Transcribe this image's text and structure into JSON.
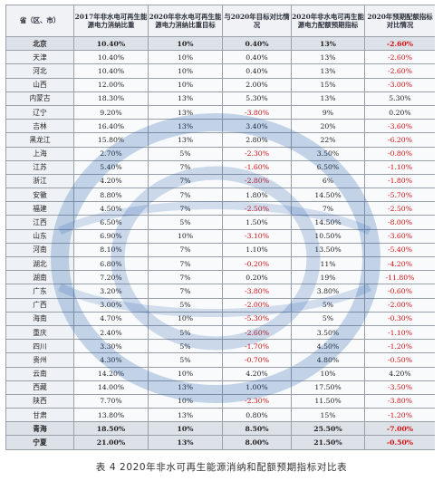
{
  "table": {
    "headers": [
      "省（区、市）",
      "2017年非水电可再生能源电力消纳比重",
      "2020年非水电可再生能源电力消纳比重目标",
      "与2020年目标对比情况",
      "2020年非水电可再生能源电力配额预期指标",
      "2020年预期配额指标对比情况"
    ],
    "rows": [
      [
        "北京",
        "10.40%",
        "10%",
        "0.40%",
        "13%",
        "-2.60%"
      ],
      [
        "天津",
        "10.40%",
        "10%",
        "0.40%",
        "13%",
        "-2.60%"
      ],
      [
        "河北",
        "10.40%",
        "10%",
        "0.40%",
        "13%",
        "-2.60%"
      ],
      [
        "山西",
        "12.00%",
        "10%",
        "2.00%",
        "15%",
        "-3.00%"
      ],
      [
        "内蒙古",
        "18.30%",
        "13%",
        "5.30%",
        "13%",
        "5.30%"
      ],
      [
        "辽宁",
        "9.20%",
        "13%",
        "-3.80%",
        "9%",
        "0.20%"
      ],
      [
        "吉林",
        "16.40%",
        "13%",
        "3.40%",
        "20%",
        "-3.60%"
      ],
      [
        "黑龙江",
        "15.80%",
        "13%",
        "2.80%",
        "22%",
        "-6.20%"
      ],
      [
        "上海",
        "2.70%",
        "5%",
        "-2.30%",
        "3.50%",
        "-0.80%"
      ],
      [
        "江苏",
        "5.40%",
        "7%",
        "-1.60%",
        "6.50%",
        "-1.10%"
      ],
      [
        "浙江",
        "4.20%",
        "7%",
        "-2.80%",
        "6%",
        "-1.80%"
      ],
      [
        "安徽",
        "8.80%",
        "7%",
        "1.80%",
        "14.50%",
        "-5.70%"
      ],
      [
        "福建",
        "4.50%",
        "7%",
        "-2.50%",
        "7%",
        "-2.50%"
      ],
      [
        "江西",
        "6.50%",
        "5%",
        "1.50%",
        "14.50%",
        "-8.00%"
      ],
      [
        "山东",
        "6.90%",
        "10%",
        "-3.10%",
        "10.50%",
        "-3.60%"
      ],
      [
        "河南",
        "8.10%",
        "7%",
        "1.10%",
        "13.50%",
        "-5.40%"
      ],
      [
        "湖北",
        "6.80%",
        "7%",
        "-0.20%",
        "11%",
        "-4.20%"
      ],
      [
        "湖南",
        "7.20%",
        "7%",
        "0.20%",
        "19%",
        "-11.80%"
      ],
      [
        "广东",
        "3.20%",
        "7%",
        "-3.80%",
        "3.80%",
        "-0.60%"
      ],
      [
        "广西",
        "3.00%",
        "5%",
        "-2.00%",
        "5%",
        "-2.00%"
      ],
      [
        "海南",
        "4.70%",
        "10%",
        "-5.30%",
        "5%",
        "-0.30%"
      ],
      [
        "重庆",
        "2.40%",
        "5%",
        "-2.60%",
        "3.50%",
        "-1.10%"
      ],
      [
        "四川",
        "3.30%",
        "5%",
        "-1.70%",
        "4.50%",
        "-1.20%"
      ],
      [
        "贵州",
        "4.30%",
        "5%",
        "-0.70%",
        "4.80%",
        "-0.50%"
      ],
      [
        "云南",
        "14.20%",
        "10%",
        "4.20%",
        "10%",
        "4.20%"
      ],
      [
        "西藏",
        "14.00%",
        "13%",
        "1.00%",
        "17.50%",
        "-3.50%"
      ],
      [
        "陕西",
        "7.70%",
        "10%",
        "-2.30%",
        "11.50%",
        "-3.80%"
      ],
      [
        "甘肃",
        "13.80%",
        "13%",
        "0.80%",
        "15%",
        "-1.20%"
      ],
      [
        "青海",
        "18.50%",
        "10%",
        "8.50%",
        "25.50%",
        "-7.00%"
      ],
      [
        "宁夏",
        "21.00%",
        "13%",
        "8.00%",
        "21.50%",
        "-0.50%"
      ],
      [
        "新疆",
        "13.10%",
        "13%",
        "0.10%",
        "14.50%",
        "-1.40%"
      ]
    ],
    "highlighted_rows": [
      0,
      28,
      29,
      30
    ],
    "negative_color": "#d40f0f"
  },
  "caption": "表 4  2020年非水可再生能源消纳和配额预期指标对比表"
}
